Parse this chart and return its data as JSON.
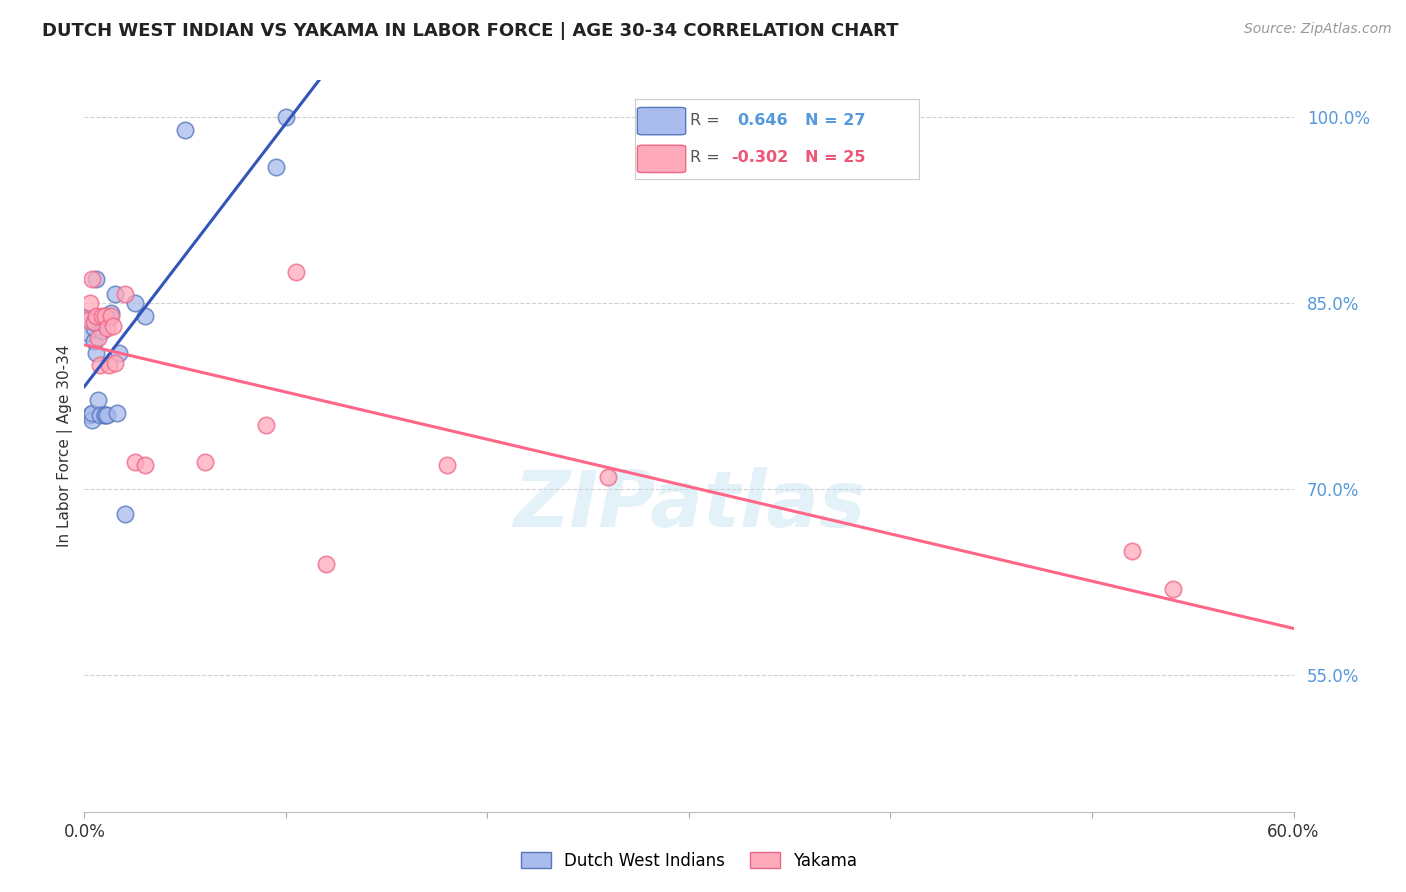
{
  "title": "DUTCH WEST INDIAN VS YAKAMA IN LABOR FORCE | AGE 30-34 CORRELATION CHART",
  "source": "Source: ZipAtlas.com",
  "ylabel": "In Labor Force | Age 30-34",
  "xlim": [
    0.0,
    0.6
  ],
  "ylim": [
    0.44,
    1.03
  ],
  "yticks": [
    0.55,
    0.7,
    0.85,
    1.0
  ],
  "ytick_labels": [
    "55.0%",
    "70.0%",
    "85.0%",
    "100.0%"
  ],
  "xticks": [
    0.0,
    0.1,
    0.2,
    0.3,
    0.4,
    0.5,
    0.6
  ],
  "xtick_labels": [
    "0.0%",
    "",
    "",
    "",
    "",
    "",
    "60.0%"
  ],
  "blue_r": 0.646,
  "blue_n": 27,
  "pink_r": -0.302,
  "pink_n": 25,
  "blue_scatter_color": "#AABBEE",
  "blue_edge_color": "#5577BB",
  "pink_scatter_color": "#FFAABB",
  "pink_edge_color": "#EE6688",
  "blue_line_color": "#3355BB",
  "pink_line_color": "#FF6688",
  "legend_blue_label": "Dutch West Indians",
  "legend_pink_label": "Yakama",
  "watermark": "ZIPatlas",
  "blue_x": [
    0.001,
    0.002,
    0.003,
    0.004,
    0.004,
    0.005,
    0.005,
    0.005,
    0.006,
    0.006,
    0.007,
    0.008,
    0.009,
    0.01,
    0.01,
    0.011,
    0.012,
    0.013,
    0.015,
    0.016,
    0.017,
    0.02,
    0.025,
    0.03,
    0.05,
    0.095,
    0.1
  ],
  "blue_y": [
    0.838,
    0.826,
    0.76,
    0.756,
    0.762,
    0.82,
    0.83,
    0.835,
    0.87,
    0.81,
    0.772,
    0.76,
    0.828,
    0.76,
    0.76,
    0.76,
    0.838,
    0.842,
    0.858,
    0.762,
    0.81,
    0.68,
    0.85,
    0.84,
    0.99,
    0.96,
    1.0
  ],
  "pink_x": [
    0.002,
    0.003,
    0.004,
    0.005,
    0.006,
    0.007,
    0.008,
    0.009,
    0.01,
    0.011,
    0.012,
    0.013,
    0.014,
    0.015,
    0.02,
    0.025,
    0.03,
    0.06,
    0.09,
    0.105,
    0.12,
    0.18,
    0.26,
    0.52,
    0.54
  ],
  "pink_y": [
    0.837,
    0.85,
    0.87,
    0.835,
    0.84,
    0.822,
    0.8,
    0.84,
    0.84,
    0.83,
    0.8,
    0.84,
    0.832,
    0.802,
    0.858,
    0.722,
    0.72,
    0.722,
    0.752,
    0.875,
    0.64,
    0.72,
    0.71,
    0.65,
    0.62
  ]
}
